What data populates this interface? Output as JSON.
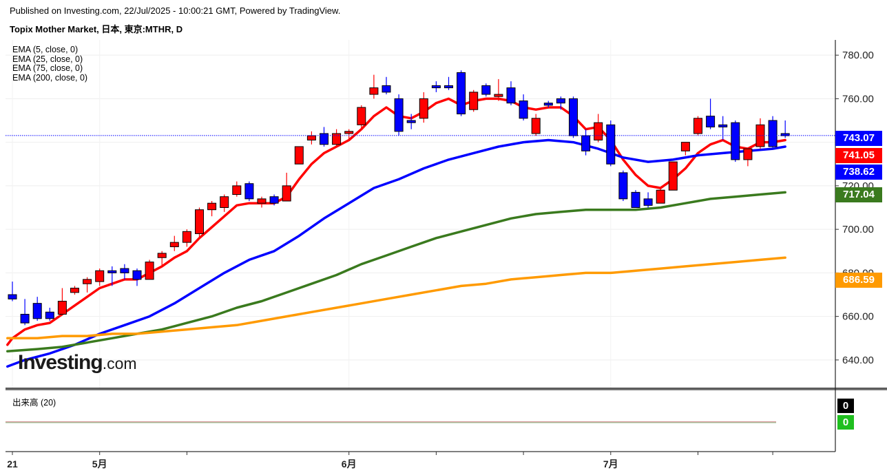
{
  "header": {
    "published": "Published on Investing.com, 22/Jul/2025 - 10:00:21 GMT, Powered by TradingView.",
    "instrument": "Topix Mother Market, 日本, 東京:MTHR, D"
  },
  "legend": [
    "EMA (5, close, 0)",
    "EMA (25, close, 0)",
    "EMA (75, close, 0)",
    "EMA (200, close, 0)"
  ],
  "volume_label": "出来高 (20)",
  "logo": {
    "brand": "Investing",
    "suffix": ".com"
  },
  "badges": [
    {
      "text": "743.07",
      "color": "#0000ff"
    },
    {
      "text": "741.05",
      "color": "#ff0000"
    },
    {
      "text": "738.62",
      "color": "#0000ff"
    },
    {
      "text": "717.04",
      "color": "#3a7a1e"
    },
    {
      "text": "686.59",
      "color": "#ff9a00"
    }
  ],
  "volume_badges": [
    {
      "text": "0",
      "color": "#000000"
    },
    {
      "text": "0",
      "color": "#1fbf1f"
    }
  ],
  "chart_data": {
    "type": "candlestick",
    "title": "Topix Mother Market, 日本, 東京:MTHR, D",
    "ylim": [
      627,
      787
    ],
    "yticks": [
      640,
      660,
      680,
      700,
      720,
      740,
      760,
      780
    ],
    "x_ticks": [
      {
        "label": "21",
        "index": 0
      },
      {
        "label": "5月",
        "index": 7
      },
      {
        "label": "6月",
        "index": 27
      },
      {
        "label": "7月",
        "index": 48
      }
    ],
    "last_price": 743.07,
    "candles": [
      {
        "o": 668,
        "h": 676,
        "l": 667,
        "c": 670,
        "col": "blue"
      },
      {
        "o": 661,
        "h": 668,
        "l": 656,
        "c": 657,
        "col": "blue"
      },
      {
        "o": 666,
        "h": 669,
        "l": 658,
        "c": 659,
        "col": "blue"
      },
      {
        "o": 662,
        "h": 664,
        "l": 658,
        "c": 659,
        "col": "blue"
      },
      {
        "o": 661,
        "h": 673,
        "l": 661,
        "c": 667,
        "col": "red"
      },
      {
        "o": 671,
        "h": 674,
        "l": 670,
        "c": 673,
        "col": "red"
      },
      {
        "o": 675,
        "h": 678,
        "l": 671,
        "c": 677,
        "col": "red"
      },
      {
        "o": 676,
        "h": 682,
        "l": 674,
        "c": 681,
        "col": "red"
      },
      {
        "o": 680,
        "h": 683,
        "l": 674,
        "c": 681,
        "col": "blue"
      },
      {
        "o": 682,
        "h": 684,
        "l": 677,
        "c": 680,
        "col": "blue"
      },
      {
        "o": 681,
        "h": 682,
        "l": 674,
        "c": 677,
        "col": "blue"
      },
      {
        "o": 677,
        "h": 686,
        "l": 677,
        "c": 685,
        "col": "red"
      },
      {
        "o": 687,
        "h": 690,
        "l": 683,
        "c": 689,
        "col": "red"
      },
      {
        "o": 692,
        "h": 697,
        "l": 690,
        "c": 694,
        "col": "red"
      },
      {
        "o": 694,
        "h": 700,
        "l": 692,
        "c": 699,
        "col": "red"
      },
      {
        "o": 698,
        "h": 710,
        "l": 696,
        "c": 709,
        "col": "red"
      },
      {
        "o": 709,
        "h": 713,
        "l": 706,
        "c": 712,
        "col": "red"
      },
      {
        "o": 710,
        "h": 716,
        "l": 708,
        "c": 715,
        "col": "red"
      },
      {
        "o": 716,
        "h": 722,
        "l": 715,
        "c": 720,
        "col": "red"
      },
      {
        "o": 721,
        "h": 722,
        "l": 713,
        "c": 714,
        "col": "blue"
      },
      {
        "o": 712,
        "h": 715,
        "l": 710,
        "c": 714,
        "col": "red"
      },
      {
        "o": 715,
        "h": 716,
        "l": 711,
        "c": 712,
        "col": "blue"
      },
      {
        "o": 713,
        "h": 726,
        "l": 713,
        "c": 720,
        "col": "red"
      },
      {
        "o": 730,
        "h": 738,
        "l": 730,
        "c": 738,
        "col": "red"
      },
      {
        "o": 741,
        "h": 745,
        "l": 739,
        "c": 743,
        "col": "red"
      },
      {
        "o": 744,
        "h": 747,
        "l": 738,
        "c": 739,
        "col": "blue"
      },
      {
        "o": 739,
        "h": 746,
        "l": 738,
        "c": 744,
        "col": "red"
      },
      {
        "o": 744,
        "h": 746,
        "l": 741,
        "c": 745,
        "col": "red"
      },
      {
        "o": 748,
        "h": 757,
        "l": 746,
        "c": 756,
        "col": "red"
      },
      {
        "o": 762,
        "h": 771,
        "l": 760,
        "c": 765,
        "col": "red"
      },
      {
        "o": 766,
        "h": 770,
        "l": 762,
        "c": 763,
        "col": "blue"
      },
      {
        "o": 760,
        "h": 762,
        "l": 743,
        "c": 745,
        "col": "blue"
      },
      {
        "o": 749,
        "h": 753,
        "l": 746,
        "c": 750,
        "col": "blue"
      },
      {
        "o": 751,
        "h": 763,
        "l": 749,
        "c": 760,
        "col": "red"
      },
      {
        "o": 765,
        "h": 768,
        "l": 763,
        "c": 766,
        "col": "blue"
      },
      {
        "o": 766,
        "h": 770,
        "l": 764,
        "c": 765,
        "col": "blue"
      },
      {
        "o": 772,
        "h": 773,
        "l": 752,
        "c": 753,
        "col": "blue"
      },
      {
        "o": 755,
        "h": 764,
        "l": 754,
        "c": 763,
        "col": "red"
      },
      {
        "o": 766,
        "h": 767,
        "l": 761,
        "c": 762,
        "col": "blue"
      },
      {
        "o": 761,
        "h": 769,
        "l": 759,
        "c": 762,
        "col": "red"
      },
      {
        "o": 765,
        "h": 768,
        "l": 757,
        "c": 758,
        "col": "blue"
      },
      {
        "o": 759,
        "h": 762,
        "l": 750,
        "c": 751,
        "col": "blue"
      },
      {
        "o": 744,
        "h": 753,
        "l": 743,
        "c": 751,
        "col": "red"
      },
      {
        "o": 757,
        "h": 759,
        "l": 756,
        "c": 758,
        "col": "blue"
      },
      {
        "o": 760,
        "h": 761,
        "l": 755,
        "c": 758,
        "col": "blue"
      },
      {
        "o": 760,
        "h": 761,
        "l": 742,
        "c": 743,
        "col": "blue"
      },
      {
        "o": 743,
        "h": 746,
        "l": 734,
        "c": 736,
        "col": "blue"
      },
      {
        "o": 741,
        "h": 753,
        "l": 740,
        "c": 749,
        "col": "red"
      },
      {
        "o": 748,
        "h": 750,
        "l": 729,
        "c": 730,
        "col": "blue"
      },
      {
        "o": 726,
        "h": 727,
        "l": 713,
        "c": 714,
        "col": "blue"
      },
      {
        "o": 717,
        "h": 718,
        "l": 710,
        "c": 710,
        "col": "blue"
      },
      {
        "o": 714,
        "h": 717,
        "l": 710,
        "c": 711,
        "col": "blue"
      },
      {
        "o": 712,
        "h": 719,
        "l": 712,
        "c": 718,
        "col": "red"
      },
      {
        "o": 718,
        "h": 731,
        "l": 718,
        "c": 731,
        "col": "red"
      },
      {
        "o": 736,
        "h": 740,
        "l": 734,
        "c": 740,
        "col": "red"
      },
      {
        "o": 744,
        "h": 752,
        "l": 743,
        "c": 751,
        "col": "red"
      },
      {
        "o": 752,
        "h": 760,
        "l": 746,
        "c": 747,
        "col": "blue"
      },
      {
        "o": 748,
        "h": 752,
        "l": 741,
        "c": 747,
        "col": "blue"
      },
      {
        "o": 749,
        "h": 750,
        "l": 731,
        "c": 732,
        "col": "blue"
      },
      {
        "o": 732,
        "h": 737,
        "l": 729,
        "c": 737,
        "col": "red"
      },
      {
        "o": 738,
        "h": 751,
        "l": 737,
        "c": 748,
        "col": "red"
      },
      {
        "o": 750,
        "h": 752,
        "l": 737,
        "c": 738,
        "col": "blue"
      },
      {
        "o": 744,
        "h": 750,
        "l": 742,
        "c": 743,
        "col": "blue"
      }
    ],
    "series": [
      {
        "name": "EMA (5, close, 0)",
        "color": "#ff0000",
        "points": [
          [
            -0.4,
            647
          ],
          [
            0,
            650
          ],
          [
            1,
            654
          ],
          [
            2,
            656
          ],
          [
            3,
            657
          ],
          [
            4,
            661
          ],
          [
            5,
            665
          ],
          [
            6,
            669
          ],
          [
            7,
            673
          ],
          [
            8,
            675
          ],
          [
            9,
            677
          ],
          [
            10,
            677
          ],
          [
            11,
            680
          ],
          [
            12,
            683
          ],
          [
            13,
            687
          ],
          [
            14,
            690
          ],
          [
            15,
            696
          ],
          [
            16,
            701
          ],
          [
            17,
            706
          ],
          [
            18,
            711
          ],
          [
            19,
            712
          ],
          [
            20,
            712
          ],
          [
            21,
            712
          ],
          [
            22,
            715
          ],
          [
            23,
            723
          ],
          [
            24,
            730
          ],
          [
            25,
            735
          ],
          [
            26,
            738
          ],
          [
            27,
            741
          ],
          [
            28,
            746
          ],
          [
            29,
            752
          ],
          [
            30,
            756
          ],
          [
            31,
            752
          ],
          [
            32,
            751
          ],
          [
            33,
            754
          ],
          [
            34,
            758
          ],
          [
            35,
            760
          ],
          [
            36,
            757
          ],
          [
            37,
            759
          ],
          [
            38,
            760
          ],
          [
            39,
            760
          ],
          [
            40,
            759
          ],
          [
            41,
            756
          ],
          [
            42,
            755
          ],
          [
            43,
            756
          ],
          [
            44,
            756
          ],
          [
            45,
            752
          ],
          [
            46,
            746
          ],
          [
            47,
            747
          ],
          [
            48,
            741
          ],
          [
            49,
            732
          ],
          [
            50,
            725
          ],
          [
            51,
            720
          ],
          [
            52,
            719
          ],
          [
            53,
            723
          ],
          [
            54,
            728
          ],
          [
            55,
            735
          ],
          [
            56,
            739
          ],
          [
            57,
            741
          ],
          [
            58,
            738
          ],
          [
            59,
            737
          ],
          [
            60,
            740
          ],
          [
            61,
            740
          ],
          [
            62,
            741
          ]
        ]
      },
      {
        "name": "EMA (25, close, 0)",
        "color": "#0000ff",
        "points": [
          [
            -0.4,
            637
          ],
          [
            1,
            640
          ],
          [
            3,
            643
          ],
          [
            5,
            647
          ],
          [
            7,
            652
          ],
          [
            9,
            656
          ],
          [
            11,
            660
          ],
          [
            13,
            666
          ],
          [
            15,
            673
          ],
          [
            17,
            680
          ],
          [
            19,
            686
          ],
          [
            21,
            690
          ],
          [
            23,
            697
          ],
          [
            25,
            705
          ],
          [
            27,
            712
          ],
          [
            29,
            719
          ],
          [
            31,
            723
          ],
          [
            33,
            728
          ],
          [
            35,
            732
          ],
          [
            37,
            735
          ],
          [
            39,
            738
          ],
          [
            41,
            740
          ],
          [
            43,
            741
          ],
          [
            45,
            740
          ],
          [
            47,
            737
          ],
          [
            49,
            733
          ],
          [
            51,
            731
          ],
          [
            53,
            732
          ],
          [
            55,
            734
          ],
          [
            57,
            735
          ],
          [
            59,
            736
          ],
          [
            61,
            737
          ],
          [
            62,
            738
          ]
        ]
      },
      {
        "name": "EMA (75, close, 0)",
        "color": "#3a7a1e",
        "points": [
          [
            -0.4,
            644
          ],
          [
            2,
            645
          ],
          [
            4,
            646
          ],
          [
            6,
            648
          ],
          [
            8,
            650
          ],
          [
            10,
            652
          ],
          [
            12,
            654
          ],
          [
            14,
            657
          ],
          [
            16,
            660
          ],
          [
            18,
            664
          ],
          [
            20,
            667
          ],
          [
            22,
            671
          ],
          [
            24,
            675
          ],
          [
            26,
            679
          ],
          [
            28,
            684
          ],
          [
            30,
            688
          ],
          [
            32,
            692
          ],
          [
            34,
            696
          ],
          [
            36,
            699
          ],
          [
            38,
            702
          ],
          [
            40,
            705
          ],
          [
            42,
            707
          ],
          [
            44,
            708
          ],
          [
            46,
            709
          ],
          [
            48,
            709
          ],
          [
            50,
            709
          ],
          [
            52,
            710
          ],
          [
            54,
            712
          ],
          [
            56,
            714
          ],
          [
            58,
            715
          ],
          [
            60,
            716
          ],
          [
            62,
            717
          ]
        ]
      },
      {
        "name": "EMA (200, close, 0)",
        "color": "#ff9a00",
        "points": [
          [
            -0.4,
            650
          ],
          [
            2,
            650
          ],
          [
            4,
            651
          ],
          [
            6,
            651
          ],
          [
            8,
            652
          ],
          [
            10,
            652
          ],
          [
            12,
            653
          ],
          [
            14,
            654
          ],
          [
            16,
            655
          ],
          [
            18,
            656
          ],
          [
            20,
            658
          ],
          [
            22,
            660
          ],
          [
            24,
            662
          ],
          [
            26,
            664
          ],
          [
            28,
            666
          ],
          [
            30,
            668
          ],
          [
            32,
            670
          ],
          [
            34,
            672
          ],
          [
            36,
            674
          ],
          [
            38,
            675
          ],
          [
            40,
            677
          ],
          [
            42,
            678
          ],
          [
            44,
            679
          ],
          [
            46,
            680
          ],
          [
            48,
            680
          ],
          [
            50,
            681
          ],
          [
            52,
            682
          ],
          [
            54,
            683
          ],
          [
            56,
            684
          ],
          [
            58,
            685
          ],
          [
            60,
            686
          ],
          [
            62,
            687
          ]
        ]
      }
    ],
    "volume_ylim": [
      0,
      1
    ],
    "volume_values": [
      0,
      0
    ]
  }
}
